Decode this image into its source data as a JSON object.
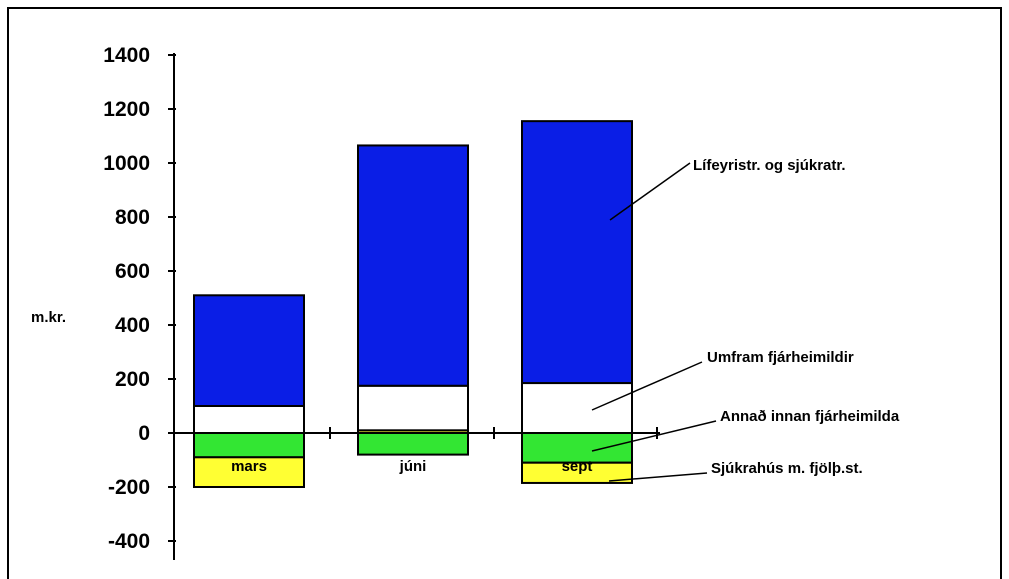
{
  "chart_data": {
    "type": "bar",
    "stacked": true,
    "categories": [
      "mars",
      "júni",
      "sept"
    ],
    "ylabel": "m.kr.",
    "ylim": [
      -400,
      1400
    ],
    "yticks": [
      -400,
      -200,
      0,
      200,
      400,
      600,
      800,
      1000,
      1200,
      1400
    ],
    "grid": false,
    "legend": "annotations",
    "series": [
      {
        "name": "Sjúkrahús m. fjölþ.st.",
        "color": "#ffff33",
        "values": [
          -110,
          10,
          -75
        ]
      },
      {
        "name": "Annað innan fjárheimilda",
        "color": "#33e633",
        "values": [
          -90,
          -80,
          -110
        ]
      },
      {
        "name": "Umfram fjárheimildir",
        "color": "#ffffff",
        "values": [
          100,
          165,
          185
        ]
      },
      {
        "name": "Lífeyristr. og sjúkratr.",
        "color": "#0a1ee6",
        "values": [
          410,
          890,
          970
        ]
      }
    ],
    "annotations": [
      {
        "text": "Lífeyristr. og sjúkratr.",
        "series": 3,
        "category": 2
      },
      {
        "text": "Umfram fjárheimildir",
        "series": 2,
        "category": 2
      },
      {
        "text": "Annað innan fjárheimilda",
        "series": 1,
        "category": 2
      },
      {
        "text": "Sjúkrahús m. fjölþ.st.",
        "series": 0,
        "category": 2
      }
    ]
  }
}
